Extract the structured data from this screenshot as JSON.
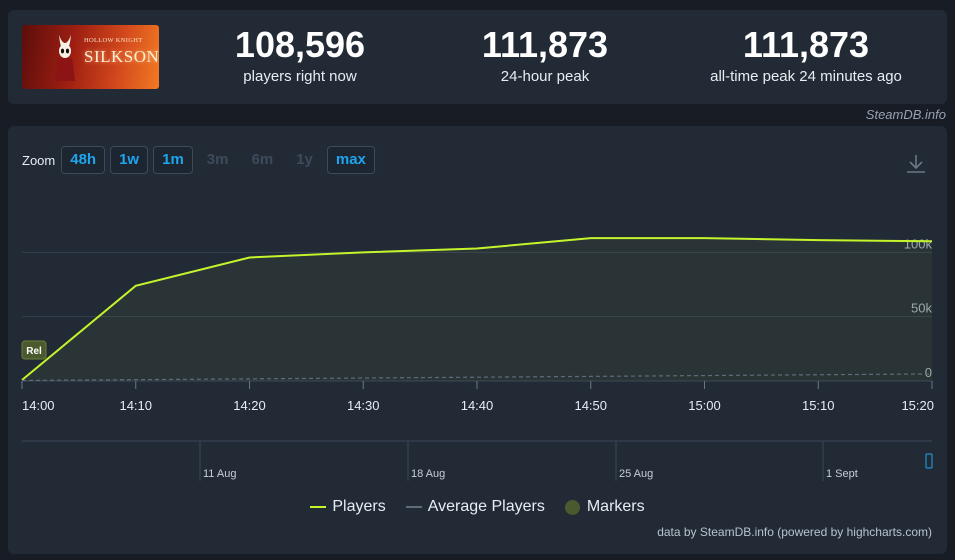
{
  "game": {
    "logo_subtitle": "HOLLOW KNIGHT",
    "logo_title": "SILKSONG"
  },
  "stats": [
    {
      "value": "108,596",
      "label": "players right now"
    },
    {
      "value": "111,873",
      "label": "24-hour peak"
    },
    {
      "value": "111,873",
      "label": "all-time peak 24 minutes ago"
    }
  ],
  "credit_top": "SteamDB.info",
  "zoom": {
    "label": "Zoom",
    "buttons": [
      {
        "label": "48h",
        "enabled": true
      },
      {
        "label": "1w",
        "enabled": true
      },
      {
        "label": "1m",
        "enabled": true
      },
      {
        "label": "3m",
        "enabled": false
      },
      {
        "label": "6m",
        "enabled": false
      },
      {
        "label": "1y",
        "enabled": false
      },
      {
        "label": "max",
        "enabled": true
      }
    ]
  },
  "icons": {
    "download": "download-icon"
  },
  "chart_data": {
    "type": "line",
    "x": [
      "14:00",
      "14:10",
      "14:20",
      "14:30",
      "14:40",
      "14:50",
      "15:00",
      "15:10",
      "15:20"
    ],
    "x_tick_labels": [
      "14:00",
      "14:10",
      "14:20",
      "14:30",
      "14:40",
      "14:50",
      "15:00",
      "15:10",
      "15:20"
    ],
    "y_tick_labels": [
      "0",
      "50k",
      "100k"
    ],
    "ylim": [
      0,
      150000
    ],
    "series": [
      {
        "name": "Players",
        "color": "#c4f52b",
        "points": [
          [
            "14:00",
            800
          ],
          [
            "14:10",
            74000
          ],
          [
            "14:20",
            96000
          ],
          [
            "14:30",
            100000
          ],
          [
            "14:40",
            103000
          ],
          [
            "14:50",
            111000
          ],
          [
            "15:00",
            111000
          ],
          [
            "15:10",
            109500
          ],
          [
            "15:20",
            108600
          ]
        ]
      },
      {
        "name": "Average Players",
        "color": "#5f6b79",
        "points": [
          [
            "14:00",
            400
          ],
          [
            "15:20",
            5500
          ]
        ]
      }
    ],
    "markers": [
      {
        "label": "Rel",
        "x": "14:00"
      }
    ],
    "navigator_labels": [
      "11 Aug",
      "18 Aug",
      "25 Aug",
      "1 Sept"
    ],
    "legend": [
      "Players",
      "Average Players",
      "Markers"
    ],
    "grid": true
  },
  "legend_colors": {
    "players": "#c4f52b",
    "average": "#5f6b79",
    "markers": "#4a5a2e"
  },
  "credit_bottom": "data by SteamDB.info (powered by highcharts.com)"
}
